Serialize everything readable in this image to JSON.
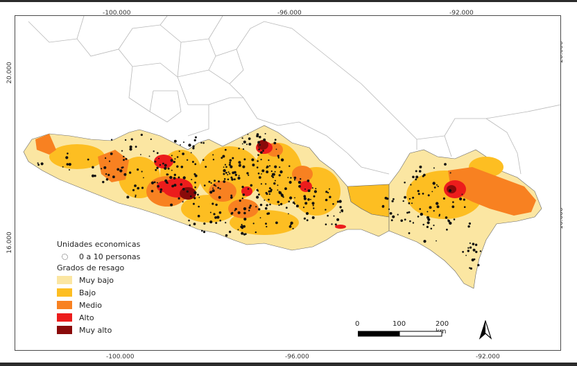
{
  "coordinates": {
    "top": [
      "-100.000",
      "-96.000",
      "-92.000"
    ],
    "bottom": [
      "-100.000",
      "-96.000",
      "-92.000"
    ],
    "left": [
      "20.000",
      "16.000"
    ],
    "right": [
      "20.000",
      "16.000"
    ]
  },
  "legend": {
    "units_title": "Unidades economicas",
    "units_item": "0 a 10 personas",
    "grades_title": "Grados de resago",
    "grades": [
      {
        "label": "Muy bajo",
        "color": "#fbe6a2"
      },
      {
        "label": "Bajo",
        "color": "#fdbe22"
      },
      {
        "label": "Medio",
        "color": "#f88121"
      },
      {
        "label": "Alto",
        "color": "#ec1c1c"
      },
      {
        "label": "Muy alto",
        "color": "#8a0a0a"
      }
    ]
  },
  "scale": {
    "labels": [
      "0",
      "100",
      "200 km"
    ]
  },
  "colors": {
    "border_lines": "#b8b8b8",
    "outline": "#666666",
    "dots": "#111111"
  },
  "icons": {
    "north_arrow": "north-arrow-icon",
    "point_symbol": "dotted-circle-icon"
  }
}
